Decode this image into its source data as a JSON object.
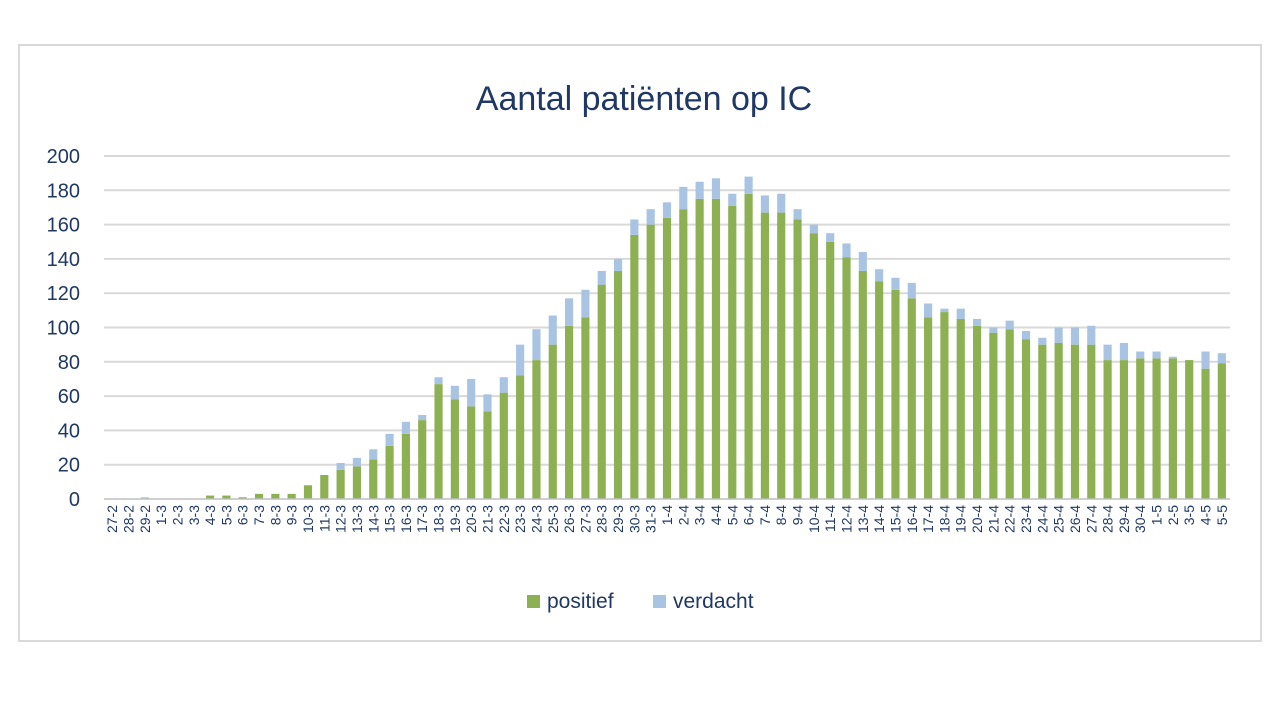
{
  "chart_data": {
    "type": "bar",
    "stacked": true,
    "title": "Aantal patiënten op IC",
    "xlabel": "",
    "ylabel": "",
    "ylim": [
      0,
      200
    ],
    "yticks": [
      0,
      20,
      40,
      60,
      80,
      100,
      120,
      140,
      160,
      180,
      200
    ],
    "grid": true,
    "legend_position": "bottom",
    "categories": [
      "27-2",
      "28-2",
      "29-2",
      "1-3",
      "2-3",
      "3-3",
      "4-3",
      "5-3",
      "6-3",
      "7-3",
      "8-3",
      "9-3",
      "10-3",
      "11-3",
      "12-3",
      "13-3",
      "14-3",
      "15-3",
      "16-3",
      "17-3",
      "18-3",
      "19-3",
      "20-3",
      "21-3",
      "22-3",
      "23-3",
      "24-3",
      "25-3",
      "26-3",
      "27-3",
      "28-3",
      "29-3",
      "30-3",
      "31-3",
      "1-4",
      "2-4",
      "3-4",
      "4-4",
      "5-4",
      "6-4",
      "7-4",
      "8-4",
      "9-4",
      "10-4",
      "11-4",
      "12-4",
      "13-4",
      "14-4",
      "15-4",
      "16-4",
      "17-4",
      "18-4",
      "19-4",
      "20-4",
      "21-4",
      "22-4",
      "23-4",
      "24-4",
      "25-4",
      "26-4",
      "27-4",
      "28-4",
      "29-4",
      "30-4",
      "1-5",
      "2-5",
      "3-5",
      "4-5",
      "5-5"
    ],
    "series": [
      {
        "name": "positief",
        "color": "#8db052",
        "values": [
          0,
          0,
          0,
          0,
          0,
          0,
          2,
          2,
          1,
          3,
          3,
          3,
          8,
          14,
          17,
          19,
          23,
          31,
          38,
          46,
          67,
          58,
          54,
          51,
          62,
          72,
          81,
          90,
          101,
          106,
          125,
          133,
          154,
          160,
          164,
          169,
          175,
          175,
          171,
          178,
          167,
          167,
          163,
          155,
          150,
          141,
          133,
          127,
          122,
          117,
          106,
          109,
          105,
          101,
          97,
          99,
          93,
          90,
          91,
          90,
          90,
          81,
          81,
          82,
          82,
          82,
          81,
          76,
          79
        ]
      },
      {
        "name": "verdacht",
        "color": "#a9c4e3",
        "values": [
          0,
          0,
          1,
          0,
          0,
          0,
          0,
          0,
          0,
          0,
          0,
          0,
          0,
          0,
          4,
          5,
          6,
          7,
          7,
          3,
          4,
          8,
          16,
          10,
          9,
          18,
          18,
          17,
          16,
          16,
          8,
          7,
          9,
          9,
          9,
          13,
          10,
          12,
          7,
          10,
          10,
          11,
          6,
          5,
          5,
          8,
          11,
          7,
          7,
          9,
          8,
          2,
          6,
          4,
          3,
          5,
          5,
          4,
          9,
          10,
          11,
          9,
          10,
          4,
          4,
          1,
          0,
          10,
          6
        ]
      }
    ]
  }
}
